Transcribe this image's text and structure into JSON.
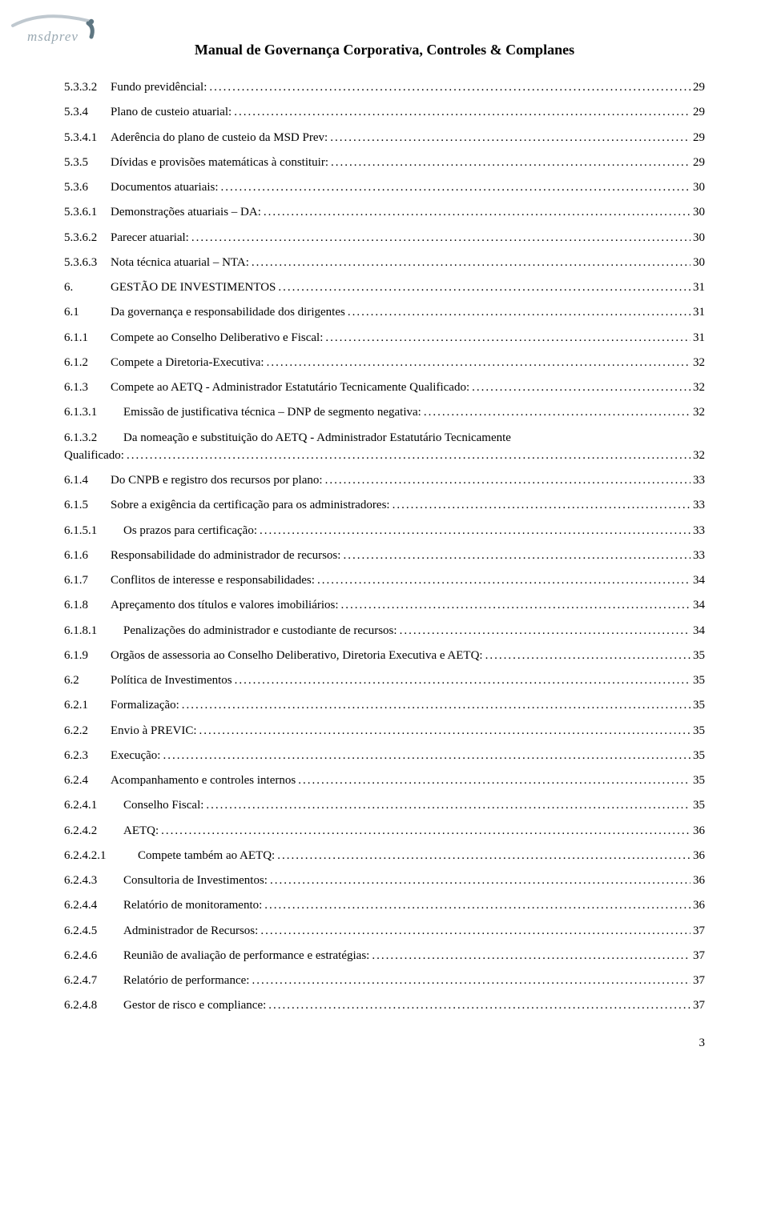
{
  "logo_text": "msdprev",
  "header_title": "Manual de Governança Corporativa, Controles & Complanes",
  "page_number": "3",
  "colors": {
    "text": "#000000",
    "logo_text": "#9aa9b2",
    "logo_swoosh_light": "#bfc8cf",
    "logo_swoosh_dark": "#5e7682",
    "background": "#ffffff"
  },
  "typography": {
    "body_font": "Times New Roman",
    "body_size_pt": 11,
    "header_size_pt": 13,
    "header_weight": "bold"
  },
  "toc": [
    {
      "indent": 1,
      "num": "5.3.3.2",
      "title": "Fundo previdêncial:",
      "page": "29"
    },
    {
      "indent": 1,
      "num": "5.3.4",
      "title": "Plano de custeio atuarial:",
      "page": "29"
    },
    {
      "indent": 1,
      "num": "5.3.4.1",
      "title": "Aderência do plano de custeio da MSD Prev:",
      "page": "29"
    },
    {
      "indent": 1,
      "num": "5.3.5",
      "title": "Dívidas e provisões matemáticas à constituir:",
      "page": "29"
    },
    {
      "indent": 1,
      "num": "5.3.6",
      "title": "Documentos atuariais:",
      "page": "30"
    },
    {
      "indent": 1,
      "num": "5.3.6.1",
      "title": "Demonstrações atuariais – DA:",
      "page": "30"
    },
    {
      "indent": 1,
      "num": "5.3.6.2",
      "title": "Parecer atuarial:",
      "page": "30"
    },
    {
      "indent": 1,
      "num": "5.3.6.3",
      "title": "Nota técnica atuarial – NTA:",
      "page": "30"
    },
    {
      "indent": 1,
      "num": "6.",
      "title": "GESTÃO DE INVESTIMENTOS",
      "page": "31"
    },
    {
      "indent": 1,
      "num": "6.1",
      "title": "Da governança e responsabilidade dos dirigentes",
      "page": "31"
    },
    {
      "indent": 1,
      "num": "6.1.1",
      "title": "Compete ao Conselho Deliberativo e Fiscal:",
      "page": "31"
    },
    {
      "indent": 1,
      "num": "6.1.2",
      "title": "Compete a Diretoria-Executiva:",
      "page": "32"
    },
    {
      "indent": 1,
      "num": "6.1.3",
      "title": "Compete ao AETQ - Administrador Estatutário Tecnicamente Qualificado:",
      "page": "32"
    },
    {
      "indent": 2,
      "num": "6.1.3.1",
      "title": "Emissão de justificativa técnica – DNP de segmento negativa:",
      "page": "32"
    },
    {
      "indent": 2,
      "num": "6.1.3.2",
      "title_line1": "Da nomeação e substituição do AETQ - Administrador Estatutário Tecnicamente",
      "title_line2": "Qualificado:",
      "page": "32",
      "wrap": true
    },
    {
      "indent": 1,
      "num": "6.1.4",
      "title": "Do CNPB e registro  dos recursos por plano:",
      "page": "33"
    },
    {
      "indent": 1,
      "num": "6.1.5",
      "title": "Sobre a exigência da certificação para os administradores:",
      "page": "33"
    },
    {
      "indent": 2,
      "num": "6.1.5.1",
      "title": "Os prazos para certificação:",
      "page": "33"
    },
    {
      "indent": 1,
      "num": "6.1.6",
      "title": "Responsabilidade do administrador de recursos:",
      "page": "33"
    },
    {
      "indent": 1,
      "num": "6.1.7",
      "title": "Conflitos de interesse e responsabilidades:",
      "page": "34"
    },
    {
      "indent": 1,
      "num": "6.1.8",
      "title": "Apreçamento dos títulos e valores imobiliários:",
      "page": "34"
    },
    {
      "indent": 2,
      "num": "6.1.8.1",
      "title": "Penalizações do administrador e custodiante de recursos:",
      "page": "34"
    },
    {
      "indent": 1,
      "num": "6.1.9",
      "title": "Orgãos de assessoria ao Conselho Deliberativo, Diretoria Executiva e AETQ:",
      "page": "35"
    },
    {
      "indent": 1,
      "num": "6.2",
      "title": "Política de Investimentos",
      "page": "35"
    },
    {
      "indent": 1,
      "num": "6.2.1",
      "title": "Formalização:",
      "page": "35"
    },
    {
      "indent": 1,
      "num": "6.2.2",
      "title": "Envio à PREVIC:",
      "page": "35"
    },
    {
      "indent": 1,
      "num": "6.2.3",
      "title": "Execução:",
      "page": "35"
    },
    {
      "indent": 1,
      "num": "6.2.4",
      "title": "Acompanhamento e controles internos",
      "page": "35"
    },
    {
      "indent": 2,
      "num": "6.2.4.1",
      "title": "Conselho Fiscal:",
      "page": "35"
    },
    {
      "indent": 2,
      "num": "6.2.4.2",
      "title": "AETQ:",
      "page": "36"
    },
    {
      "indent": 3,
      "num": "6.2.4.2.1",
      "title": "Compete também ao AETQ:",
      "page": "36"
    },
    {
      "indent": 2,
      "num": "6.2.4.3",
      "title": "Consultoria de Investimentos:",
      "page": "36"
    },
    {
      "indent": 2,
      "num": "6.2.4.4",
      "title": "Relatório de monitoramento:",
      "page": "36"
    },
    {
      "indent": 2,
      "num": "6.2.4.5",
      "title": "Administrador de Recursos:",
      "page": "37"
    },
    {
      "indent": 2,
      "num": "6.2.4.6",
      "title": "Reunião de avaliação de performance e estratégias:",
      "page": "37"
    },
    {
      "indent": 2,
      "num": "6.2.4.7",
      "title": "Relatório de performance:",
      "page": "37"
    },
    {
      "indent": 2,
      "num": "6.2.4.8",
      "title": "Gestor de risco e compliance:",
      "page": "37"
    }
  ]
}
